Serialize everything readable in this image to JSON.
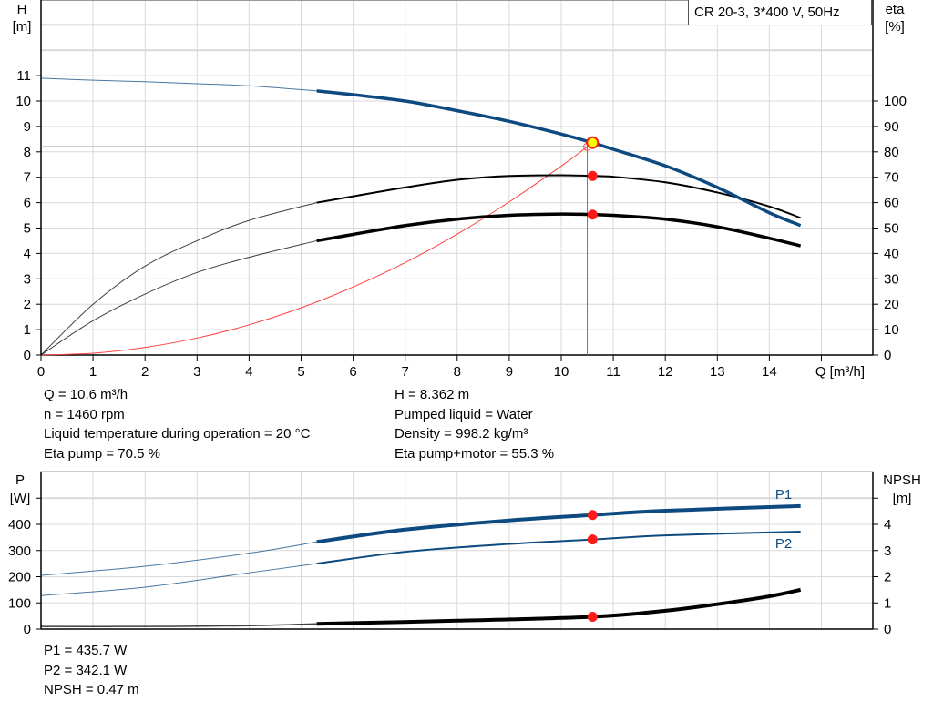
{
  "legend_title": "CR 20-3, 3*400 V, 50Hz",
  "colors": {
    "head": "#0d4a80",
    "efficiency": "#000000",
    "system": "#ff4040",
    "power": "#0d4a80",
    "npsh": "#000000",
    "duty_point": "#ff1a1a",
    "duty_point_head": "#ffff00",
    "grid": "#d9d9d9"
  },
  "operating_info_left": [
    "Q = 10.6 m³/h",
    "n = 1460 rpm",
    "Liquid temperature during operation = 20 °C",
    "Eta pump = 70.5 %"
  ],
  "operating_info_right": [
    "H = 8.362 m",
    "Pumped liquid = Water",
    "Density = 998.2 kg/m³",
    "Eta pump+motor = 55.3 %"
  ],
  "power_info": [
    "P1 = 435.7 W",
    "P2 = 342.1 W",
    "NPSH = 0.47 m"
  ],
  "chart_data": [
    {
      "type": "line",
      "title": "",
      "xlabel": "Q [m³/h]",
      "ylabel_left": [
        "H",
        "[m]"
      ],
      "ylabel_right": [
        "eta",
        "[%]"
      ],
      "xlim": [
        0,
        16
      ],
      "ylim_left": [
        0,
        14
      ],
      "ylim_right": [
        0,
        140
      ],
      "grid": true,
      "x_ticks": [
        "0",
        "1",
        "2",
        "3",
        "4",
        "5",
        "6",
        "7",
        "8",
        "9",
        "10",
        "11",
        "12",
        "13",
        "14"
      ],
      "y_ticks_left": [
        "0",
        "1",
        "2",
        "3",
        "4",
        "5",
        "6",
        "7",
        "8",
        "9",
        "10",
        "11"
      ],
      "y_ticks_right": [
        "0",
        "10",
        "20",
        "30",
        "40",
        "50",
        "60",
        "70",
        "80",
        "90",
        "100"
      ],
      "series": [
        {
          "id": "H",
          "axis": "left",
          "q": [
            0,
            1,
            2,
            3,
            4,
            5.3,
            6,
            7,
            8,
            9,
            10,
            10.6,
            11,
            12,
            13,
            14,
            14.6
          ],
          "values": [
            10.9,
            10.82,
            10.76,
            10.68,
            10.6,
            10.4,
            10.25,
            10.0,
            9.62,
            9.2,
            8.7,
            8.36,
            8.1,
            7.45,
            6.6,
            5.6,
            5.1
          ]
        },
        {
          "id": "eta_pump",
          "axis": "right",
          "q": [
            0,
            1,
            2,
            3,
            4,
            5.3,
            6,
            7,
            8,
            9,
            10,
            10.6,
            11,
            12,
            13,
            14,
            14.6
          ],
          "values": [
            0,
            20,
            35,
            45,
            53,
            60,
            62.5,
            66,
            69,
            70.5,
            70.8,
            70.5,
            70.2,
            68,
            64,
            58.5,
            54
          ]
        },
        {
          "id": "eta_pump_motor",
          "axis": "right",
          "q": [
            0,
            1,
            2,
            3,
            4,
            5.3,
            6,
            7,
            8,
            9,
            10,
            10.6,
            11,
            12,
            13,
            14,
            14.6
          ],
          "values": [
            0,
            13.5,
            24,
            32.5,
            38.5,
            45,
            47.5,
            51,
            53.5,
            55,
            55.5,
            55.3,
            55,
            53.5,
            50.5,
            46,
            43
          ]
        },
        {
          "id": "system_curve",
          "axis": "left",
          "q": [
            0,
            1,
            2,
            3,
            4,
            5,
            6,
            7,
            8,
            9,
            10,
            10.5
          ],
          "values": [
            0,
            0.07,
            0.3,
            0.67,
            1.19,
            1.86,
            2.68,
            3.64,
            4.76,
            6.03,
            7.44,
            8.2
          ]
        }
      ],
      "duty_point": {
        "q": 10.6,
        "H": 8.362,
        "eta_pump": 70.5,
        "eta_pump_motor": 55.3
      },
      "required_point": {
        "q": 10.5,
        "H": 8.2
      }
    },
    {
      "type": "line",
      "title": "",
      "ylabel_left": [
        "P",
        "[W]"
      ],
      "ylabel_right": [
        "NPSH",
        "[m]"
      ],
      "xlim": [
        0,
        16
      ],
      "ylim_left": [
        0,
        600
      ],
      "ylim_right": [
        0,
        6
      ],
      "grid": true,
      "y_ticks_left": [
        "0",
        "100",
        "200",
        "300",
        "400"
      ],
      "y_ticks_right": [
        "0",
        "1",
        "2",
        "3",
        "4"
      ],
      "series": [
        {
          "id": "P1",
          "name": "P1",
          "axis": "left",
          "q": [
            0,
            2,
            4,
            5.3,
            7,
            9,
            10.6,
            12,
            14.6
          ],
          "values": [
            205,
            240,
            290,
            333,
            380,
            415,
            435.7,
            452,
            470
          ]
        },
        {
          "id": "P2",
          "name": "P2",
          "axis": "left",
          "q": [
            0,
            2,
            4,
            5.3,
            7,
            9,
            10.6,
            12,
            14.6
          ],
          "values": [
            128,
            160,
            215,
            250,
            295,
            325,
            342.1,
            358,
            372
          ]
        },
        {
          "id": "NPSH",
          "axis": "right",
          "q": [
            0,
            2,
            4,
            5.3,
            8,
            10.6,
            12,
            13,
            14,
            14.6
          ],
          "values": [
            0.1,
            0.1,
            0.13,
            0.2,
            0.32,
            0.47,
            0.7,
            0.95,
            1.25,
            1.5
          ]
        }
      ],
      "duty_point": {
        "q": 10.6,
        "P1": 435.7,
        "P2": 342.1,
        "NPSH": 0.47
      }
    }
  ]
}
